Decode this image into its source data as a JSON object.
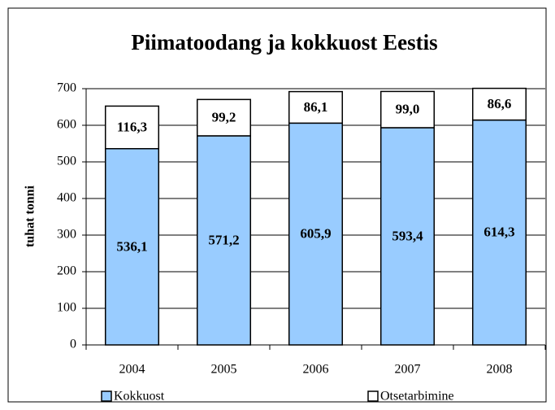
{
  "chart_data": {
    "type": "stacked_bar",
    "title": "Piimatoodang ja kokkuost Eestis",
    "y_label": "tuhat tonni",
    "categories": [
      "2004",
      "2005",
      "2006",
      "2007",
      "2008"
    ],
    "series": [
      {
        "name": "Kokkuost",
        "color": "#99ccff",
        "values": [
          536.1,
          571.2,
          605.9,
          593.4,
          614.3
        ],
        "value_labels": [
          "536,1",
          "571,2",
          "605,9",
          "593,4",
          "614,3"
        ]
      },
      {
        "name": "Otsetarbimine",
        "color": "#ffffff",
        "values": [
          116.3,
          99.2,
          86.1,
          99.0,
          86.6
        ],
        "value_labels": [
          "116,3",
          "99,2",
          "86,1",
          "99,0",
          "86,6"
        ]
      }
    ],
    "ylim": [
      0,
      700
    ],
    "yticks": [
      0,
      100,
      200,
      300,
      400,
      500,
      600,
      700
    ],
    "grid": true,
    "legend": "bottom"
  }
}
